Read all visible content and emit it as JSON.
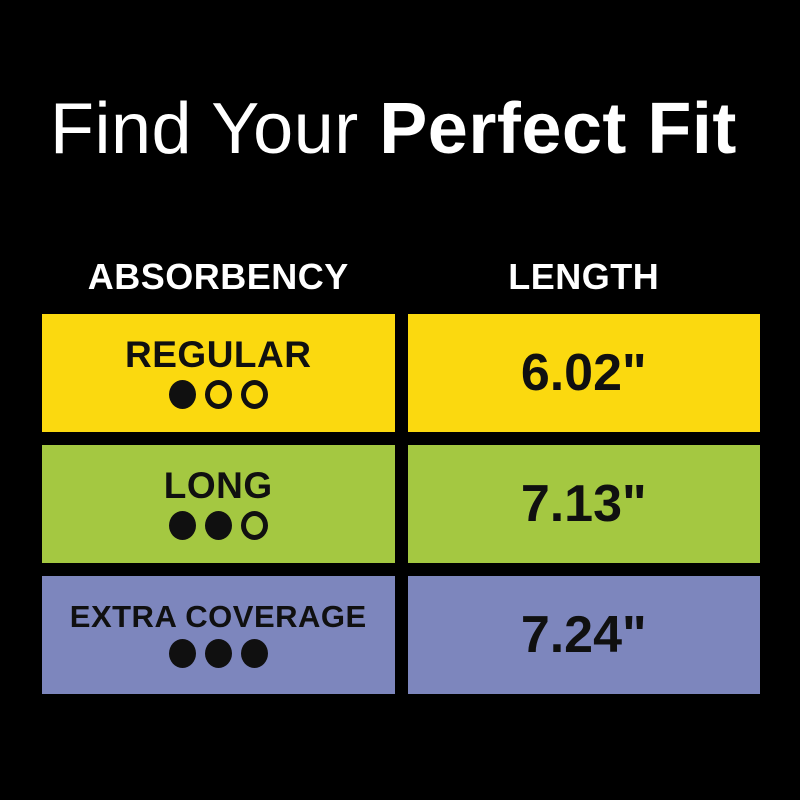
{
  "title": {
    "regular": "Find Your ",
    "bold": "Perfect Fit"
  },
  "colors": {
    "background": "#000000",
    "header_text": "#FFFFFF",
    "row_text": "#101010",
    "row_regular": "#FBD90F",
    "row_long": "#A4C841",
    "row_extra_coverage": "#7D86BD"
  },
  "table": {
    "headers": {
      "absorbency": "ABSORBENCY",
      "length": "LENGTH"
    },
    "rows": [
      {
        "label": "REGULAR",
        "dots_filled": 1,
        "dots_total": 3,
        "length": "6.02\"",
        "color": "#FBD90F"
      },
      {
        "label": "LONG",
        "dots_filled": 2,
        "dots_total": 3,
        "length": "7.13\"",
        "color": "#A4C841"
      },
      {
        "label": "EXTRA COVERAGE",
        "dots_filled": 3,
        "dots_total": 3,
        "length": "7.24\"",
        "color": "#7D86BD"
      }
    ]
  },
  "chart_data": {
    "type": "table",
    "title": "Find Your Perfect Fit",
    "columns": [
      "ABSORBENCY",
      "LENGTH"
    ],
    "rows": [
      {
        "absorbency": "REGULAR",
        "absorbency_level": 1,
        "absorbency_scale_max": 3,
        "length_inches": 6.02
      },
      {
        "absorbency": "LONG",
        "absorbency_level": 2,
        "absorbency_scale_max": 3,
        "length_inches": 7.13
      },
      {
        "absorbency": "EXTRA COVERAGE",
        "absorbency_level": 3,
        "absorbency_scale_max": 3,
        "length_inches": 7.24
      }
    ],
    "legend_position": "none",
    "grid": false
  }
}
